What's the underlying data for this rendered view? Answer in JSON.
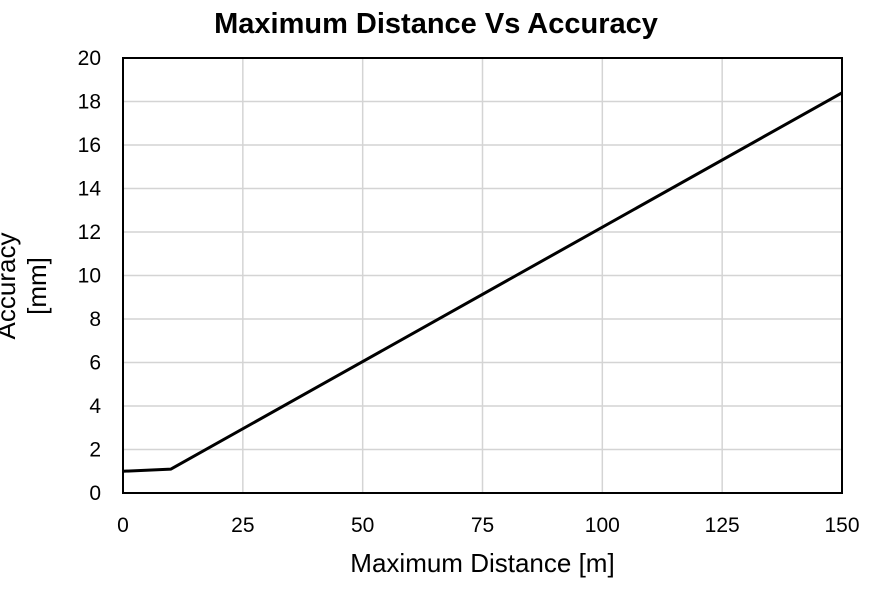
{
  "chart_data": {
    "type": "line",
    "title": "Maximum Distance Vs Accuracy",
    "xlabel": "Maximum Distance [m]",
    "ylabel": "Accuracy [mm]",
    "xlim": [
      0,
      150
    ],
    "ylim": [
      0,
      20
    ],
    "xticks": [
      0,
      25,
      50,
      75,
      100,
      125,
      150
    ],
    "yticks": [
      0,
      2,
      4,
      6,
      8,
      10,
      12,
      14,
      16,
      18,
      20
    ],
    "grid": true,
    "legend": null,
    "series": [
      {
        "name": "Accuracy",
        "color": "#000000",
        "x": [
          0,
          10,
          150
        ],
        "y": [
          1.0,
          1.1,
          18.4
        ]
      }
    ]
  }
}
